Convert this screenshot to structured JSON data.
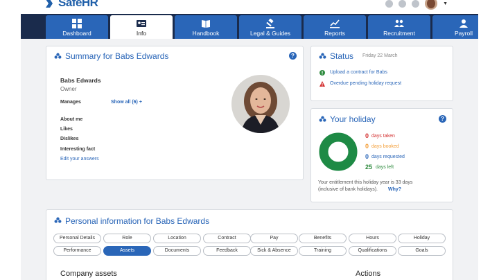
{
  "brand": {
    "name": "SafeHR"
  },
  "nav": {
    "tabs": [
      {
        "label": "Dashboard",
        "icon": "grid-icon"
      },
      {
        "label": "Info",
        "icon": "id-card-icon"
      },
      {
        "label": "Handbook",
        "icon": "book-icon"
      },
      {
        "label": "Legal & Guides",
        "icon": "gavel-icon"
      },
      {
        "label": "Reports",
        "icon": "chart-icon"
      },
      {
        "label": "Recruitment",
        "icon": "people-icon"
      },
      {
        "label": "Payroll",
        "icon": "user-icon"
      }
    ]
  },
  "summary": {
    "title": "Summary for Babs Edwards",
    "name": "Babs Edwards",
    "role": "Owner",
    "manages_label": "Manages",
    "show_all": "Show all (6) +",
    "about_me": "About me",
    "likes": "Likes",
    "dislikes": "Dislikes",
    "interesting_fact": "Interesting fact",
    "edit_answers": "Edit your answers"
  },
  "status": {
    "title": "Status",
    "date": "Friday 22 March",
    "items": [
      {
        "text": "Upload a contract for Babs",
        "icon": "check-circle-icon",
        "color": "#2e8b3e"
      },
      {
        "text": "Overdue pending holiday request",
        "icon": "warning-icon",
        "color": "#d32f2f"
      }
    ]
  },
  "holiday": {
    "title": "Your holiday",
    "stats": [
      {
        "value": "0",
        "label": "days taken",
        "color": "#d32f2f"
      },
      {
        "value": "0",
        "label": "days booked",
        "color": "#f39c34"
      },
      {
        "value": "0",
        "label": "days requested",
        "color": "#2a66b8"
      },
      {
        "value": "25",
        "label": "days left",
        "color": "#2e8b3e"
      }
    ],
    "entitlement": "Your entitlement this holiday year is 33 days",
    "entitlement2": "(inclusive of bank holidays).",
    "why": "Why?"
  },
  "personal": {
    "title": "Personal information for Babs Edwards",
    "pills_row1": [
      "Personal Details",
      "Role",
      "Location",
      "Contract",
      "Pay",
      "Benefits",
      "Hours",
      "Holiday"
    ],
    "pills_row2": [
      "Performance",
      "Assets",
      "Documents",
      "Feedback",
      "Sick & Absence",
      "Training",
      "Qualifications",
      "Goals"
    ],
    "active_pill": "Assets",
    "section_title": "Company assets",
    "actions_title": "Actions"
  }
}
